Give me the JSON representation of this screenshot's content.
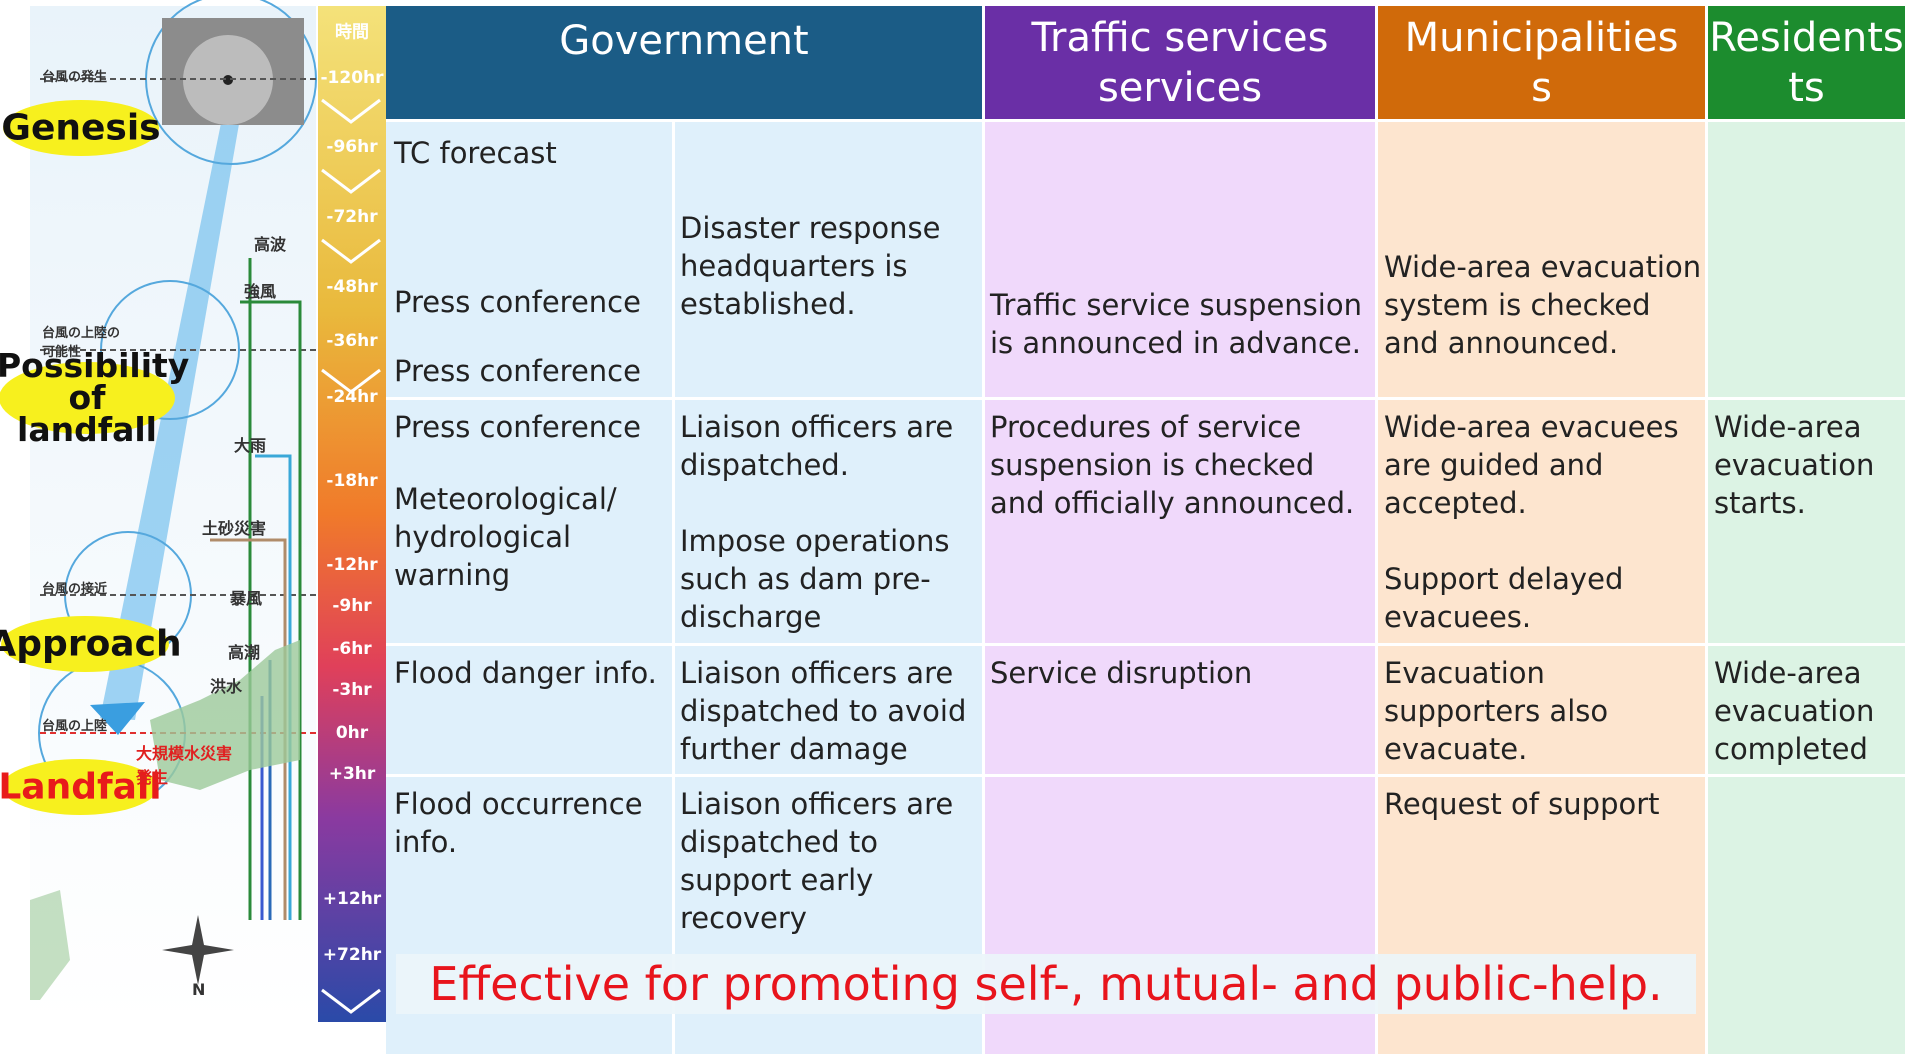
{
  "left_panel": {
    "stages": [
      "Genesis",
      "Possibility of landfall",
      "Approach",
      "Landfall"
    ],
    "map_labels": [
      "台風の発生",
      "台風の上陸の可能性",
      "台風の接近",
      "台風の上陸",
      "大規模水災害発生",
      "高波",
      "強風",
      "大雨",
      "土砂災害",
      "暴風",
      "高潮",
      "洪水"
    ],
    "compass": "N"
  },
  "timeline": {
    "header": "時間",
    "ticks": [
      "-120hr",
      "-96hr",
      "-72hr",
      "-48hr",
      "-36hr",
      "-24hr",
      "-18hr",
      "-12hr",
      "-9hr",
      "-6hr",
      "-3hr",
      "0hr",
      "+3hr",
      "+12hr",
      "+72hr"
    ]
  },
  "table": {
    "headers": [
      {
        "lines": [
          "Government"
        ]
      },
      {
        "lines": [
          "Traffic services",
          "services"
        ]
      },
      {
        "lines": [
          "Municipalities",
          "s"
        ]
      },
      {
        "lines": [
          "Residents",
          "ts"
        ]
      }
    ],
    "rows": [
      {
        "government_left": [
          "TC forecast",
          "Press conference",
          "Press conference"
        ],
        "government_right": [
          "Disaster response headquarters is established."
        ],
        "traffic": [
          "Traffic service suspension is announced in advance."
        ],
        "municipalities": [
          "Wide-area evacuation system is checked and announced."
        ],
        "residents": []
      },
      {
        "government_left": [
          "Press conference",
          "Meteorological/ hydrological warning"
        ],
        "government_right": [
          "Liaison officers are dispatched.",
          "Impose operations such as dam pre-discharge"
        ],
        "traffic": [
          "Procedures of service suspension is checked and officially announced."
        ],
        "municipalities": [
          "Wide-area evacuees are guided and accepted.",
          "Support delayed evacuees."
        ],
        "residents": [
          "Wide-area evacuation starts."
        ]
      },
      {
        "government_left": [
          "Flood danger info."
        ],
        "government_right": [
          "Liaison officers are dispatched to avoid further damage"
        ],
        "traffic": [
          "Service disruption"
        ],
        "municipalities": [
          "Evacuation supporters also evacuate."
        ],
        "residents": [
          "Wide-area evacuation completed"
        ]
      },
      {
        "government_left": [
          "Flood occurrence info."
        ],
        "government_right": [
          "Liaison officers are dispatched to support early recovery"
        ],
        "traffic": [],
        "municipalities": [
          "Request of support"
        ],
        "residents": []
      }
    ]
  },
  "footer": "Effective for promoting self-, mutual- and public-help."
}
